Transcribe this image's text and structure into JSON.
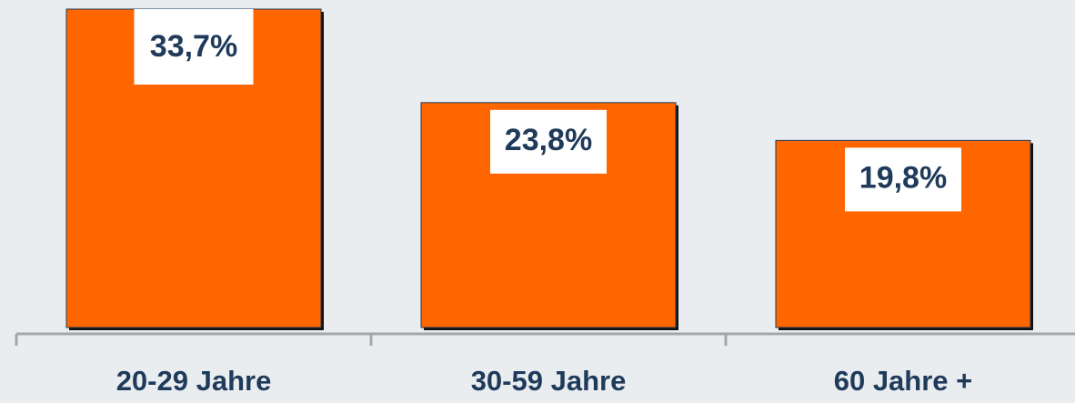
{
  "chart_data": {
    "type": "bar",
    "categories": [
      "20-29 Jahre",
      "30-59 Jahre",
      "60 Jahre +"
    ],
    "values": [
      33.7,
      23.8,
      19.8
    ],
    "value_labels": [
      "33,7%",
      "23,8%",
      "19,8%"
    ],
    "color": "#ff6600"
  }
}
